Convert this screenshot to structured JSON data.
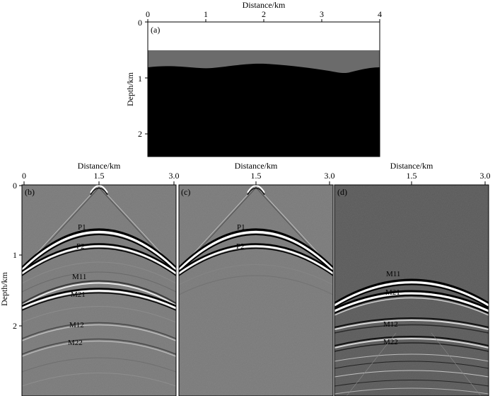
{
  "figure": {
    "panels": [
      {
        "id": "a",
        "label": "(a)",
        "type": "velocity-model",
        "xlabel": "Distance/km",
        "ylabel": "Depth/km",
        "xticks": [
          "0",
          "1",
          "2",
          "3",
          "4"
        ],
        "yticks": [
          "0",
          "1",
          "2"
        ],
        "colors": {
          "water": "#ffffff",
          "layer": "#6b6b6b",
          "basement": "#000000"
        }
      },
      {
        "id": "b",
        "label": "(b)",
        "type": "shot-gather",
        "xlabel": "Distance/km",
        "ylabel": "Depth/km",
        "xticks": [
          "0",
          "1.5",
          "3.0"
        ],
        "yticks": [
          "0",
          "1",
          "2"
        ],
        "events": [
          "P1",
          "P2",
          "M11",
          "M21",
          "M12",
          "M22"
        ]
      },
      {
        "id": "c",
        "label": "(c)",
        "type": "shot-gather",
        "xlabel": "Distance/km",
        "xticks": [
          "1.5",
          "3.0"
        ],
        "events": [
          "P1",
          "P2"
        ]
      },
      {
        "id": "d",
        "label": "(d)",
        "type": "shot-gather",
        "xlabel": "Distance/km",
        "xticks": [
          "1.5",
          "3.0"
        ],
        "events": [
          "M11",
          "M21",
          "M12",
          "M22"
        ]
      }
    ]
  }
}
